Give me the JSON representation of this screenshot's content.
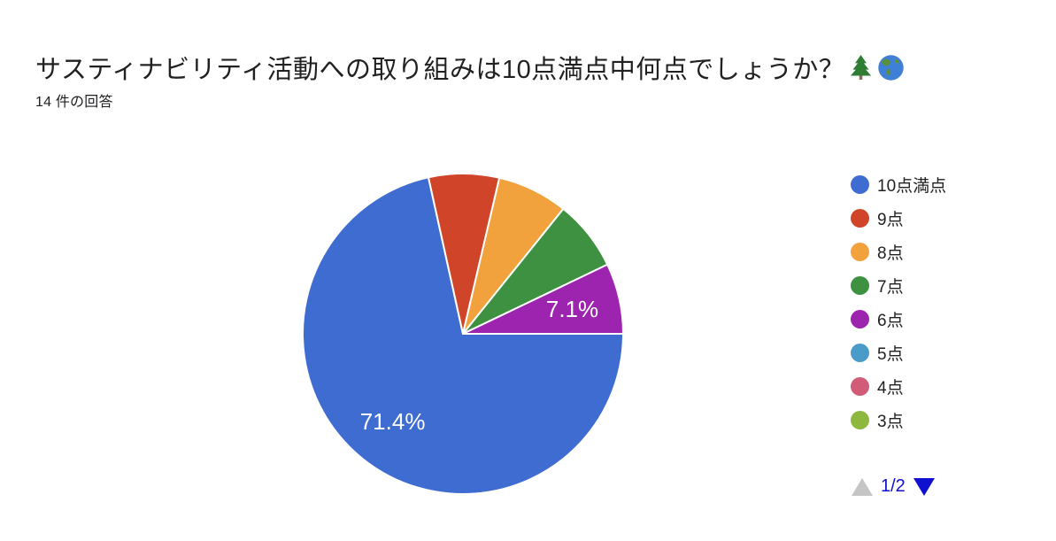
{
  "header": {
    "title_text": "サスティナビリティ活動への取り組みは10点満点中何点でしょうか？",
    "title_emojis": "🌲🌎",
    "response_count": "14 件の回答"
  },
  "chart_data": {
    "type": "pie",
    "title": "サスティナビリティ活動への取り組みは10点満点中何点でしょうか？🌲🌎",
    "total_responses": 14,
    "start_angle_deg": 90,
    "direction": "clockwise",
    "legend_position": "right",
    "slices": [
      {
        "label": "10点満点",
        "percent": 71.4,
        "count": 10,
        "color": "#3e6cd0",
        "show_label": true,
        "label_text": "71.4%"
      },
      {
        "label": "9点",
        "percent": 7.1,
        "count": 1,
        "color": "#d0452a",
        "show_label": false,
        "label_text": "7.1%"
      },
      {
        "label": "8点",
        "percent": 7.1,
        "count": 1,
        "color": "#f1a23c",
        "show_label": false,
        "label_text": "7.1%"
      },
      {
        "label": "7点",
        "percent": 7.1,
        "count": 1,
        "color": "#3e9140",
        "show_label": false,
        "label_text": "7.1%"
      },
      {
        "label": "6点",
        "percent": 7.1,
        "count": 1,
        "color": "#9d24af",
        "show_label": true,
        "label_text": "7.1%"
      }
    ]
  },
  "legend": {
    "items": [
      {
        "label": "10点満点",
        "color": "#3e6cd0"
      },
      {
        "label": "9点",
        "color": "#d0452a"
      },
      {
        "label": "8点",
        "color": "#f1a23c"
      },
      {
        "label": "7点",
        "color": "#3e9140"
      },
      {
        "label": "6点",
        "color": "#9d24af"
      },
      {
        "label": "5点",
        "color": "#4b9bc8"
      },
      {
        "label": "4点",
        "color": "#d05c78"
      },
      {
        "label": "3点",
        "color": "#8cb83d"
      }
    ],
    "pagination": {
      "current_page": "1/2",
      "up_arrow_color": "#c5c5c5",
      "down_arrow_color": "#1010d0",
      "text_color": "#1010d0"
    }
  }
}
